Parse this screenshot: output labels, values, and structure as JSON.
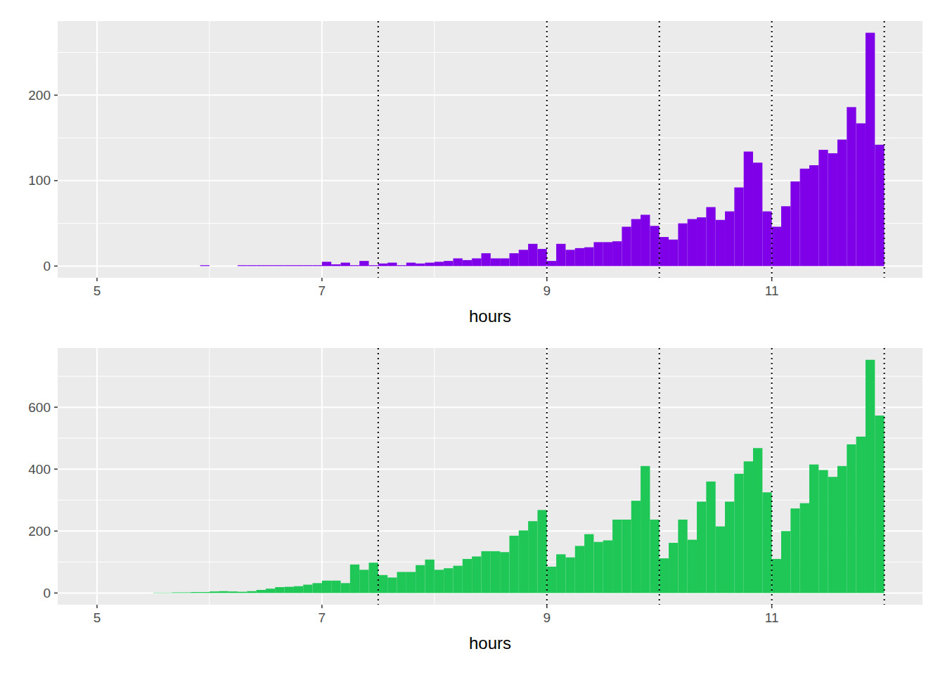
{
  "chart_data": [
    {
      "type": "histogram",
      "x_label": "hours",
      "color": "#7f00e8",
      "grid": true,
      "bins": [
        5.5,
        5.5833,
        5.6667,
        5.75,
        5.8333,
        5.9167,
        6,
        6.0833,
        6.1667,
        6.25,
        6.3333,
        6.4167,
        6.5,
        6.5833,
        6.6667,
        6.75,
        6.8333,
        6.9167,
        7,
        7.0833,
        7.1667,
        7.25,
        7.3333,
        7.4167,
        7.5,
        7.5833,
        7.6667,
        7.75,
        7.8333,
        7.9167,
        8,
        8.0833,
        8.1667,
        8.25,
        8.3333,
        8.4167,
        8.5,
        8.5833,
        8.6667,
        8.75,
        8.8333,
        8.9167,
        9,
        9.0833,
        9.1667,
        9.25,
        9.3333,
        9.4167,
        9.5,
        9.5833,
        9.6667,
        9.75,
        9.8333,
        9.9167,
        10,
        10.0833,
        10.1667,
        10.25,
        10.3333,
        10.4167,
        10.5,
        10.5833,
        10.6667,
        10.75,
        10.8333,
        10.9167,
        11,
        11.0833,
        11.1667,
        11.25,
        11.3333,
        11.4167,
        11.5,
        11.5833,
        11.6667,
        11.75,
        11.8333,
        11.9167,
        12
      ],
      "values": [
        0,
        0,
        0,
        0,
        0,
        1,
        0,
        0,
        0,
        1,
        1,
        1,
        1,
        1,
        1,
        1,
        1,
        1,
        5,
        2,
        4,
        1,
        6,
        1,
        3,
        4,
        1,
        4,
        3,
        4,
        5,
        6,
        9,
        7,
        9,
        15,
        9,
        9,
        15,
        19,
        26,
        20,
        6,
        26,
        19,
        21,
        22,
        28,
        28,
        29,
        46,
        55,
        60,
        47,
        34,
        31,
        50,
        55,
        57,
        69,
        54,
        64,
        92,
        134,
        121,
        64,
        46,
        70,
        99,
        114,
        118,
        136,
        132,
        148,
        186,
        167,
        273,
        142
      ],
      "xlim": [
        4.65,
        12.34
      ],
      "xticks": [
        5,
        7,
        9,
        11
      ],
      "ylim": [
        -13.65,
        286.65
      ],
      "yticks": [
        0,
        100,
        200
      ],
      "vlines": [
        7.5,
        9,
        10,
        11,
        12
      ]
    },
    {
      "type": "histogram",
      "x_label": "hours",
      "color": "#1ec756",
      "grid": true,
      "bins": [
        5.5,
        5.5833,
        5.6667,
        5.75,
        5.8333,
        5.9167,
        6,
        6.0833,
        6.1667,
        6.25,
        6.3333,
        6.4167,
        6.5,
        6.5833,
        6.6667,
        6.75,
        6.8333,
        6.9167,
        7,
        7.0833,
        7.1667,
        7.25,
        7.3333,
        7.4167,
        7.5,
        7.5833,
        7.6667,
        7.75,
        7.8333,
        7.9167,
        8,
        8.0833,
        8.1667,
        8.25,
        8.3333,
        8.4167,
        8.5,
        8.5833,
        8.6667,
        8.75,
        8.8333,
        8.9167,
        9,
        9.0833,
        9.1667,
        9.25,
        9.3333,
        9.4167,
        9.5,
        9.5833,
        9.6667,
        9.75,
        9.8333,
        9.9167,
        10,
        10.0833,
        10.1667,
        10.25,
        10.3333,
        10.4167,
        10.5,
        10.5833,
        10.6667,
        10.75,
        10.8333,
        10.9167,
        11,
        11.0833,
        11.1667,
        11.25,
        11.3333,
        11.4167,
        11.5,
        11.5833,
        11.6667,
        11.75,
        11.8333,
        11.9167,
        12
      ],
      "values": [
        1,
        1,
        2,
        2,
        3,
        3,
        5,
        6,
        5,
        4,
        6,
        10,
        14,
        19,
        20,
        22,
        27,
        32,
        40,
        40,
        32,
        92,
        75,
        98,
        58,
        50,
        68,
        68,
        90,
        108,
        75,
        80,
        88,
        110,
        118,
        135,
        135,
        132,
        185,
        202,
        232,
        268,
        85,
        125,
        115,
        152,
        190,
        165,
        170,
        237,
        237,
        298,
        410,
        237,
        112,
        162,
        237,
        172,
        295,
        360,
        215,
        295,
        385,
        425,
        468,
        325,
        110,
        200,
        273,
        290,
        415,
        397,
        375,
        410,
        480,
        505,
        753,
        573
      ],
      "xlim": [
        4.65,
        12.34
      ],
      "xticks": [
        5,
        7,
        9,
        11
      ],
      "ylim": [
        -37.7,
        791
      ],
      "yticks": [
        0,
        200,
        400,
        600
      ],
      "vlines": [
        7.5,
        9,
        10,
        11,
        12
      ]
    }
  ]
}
